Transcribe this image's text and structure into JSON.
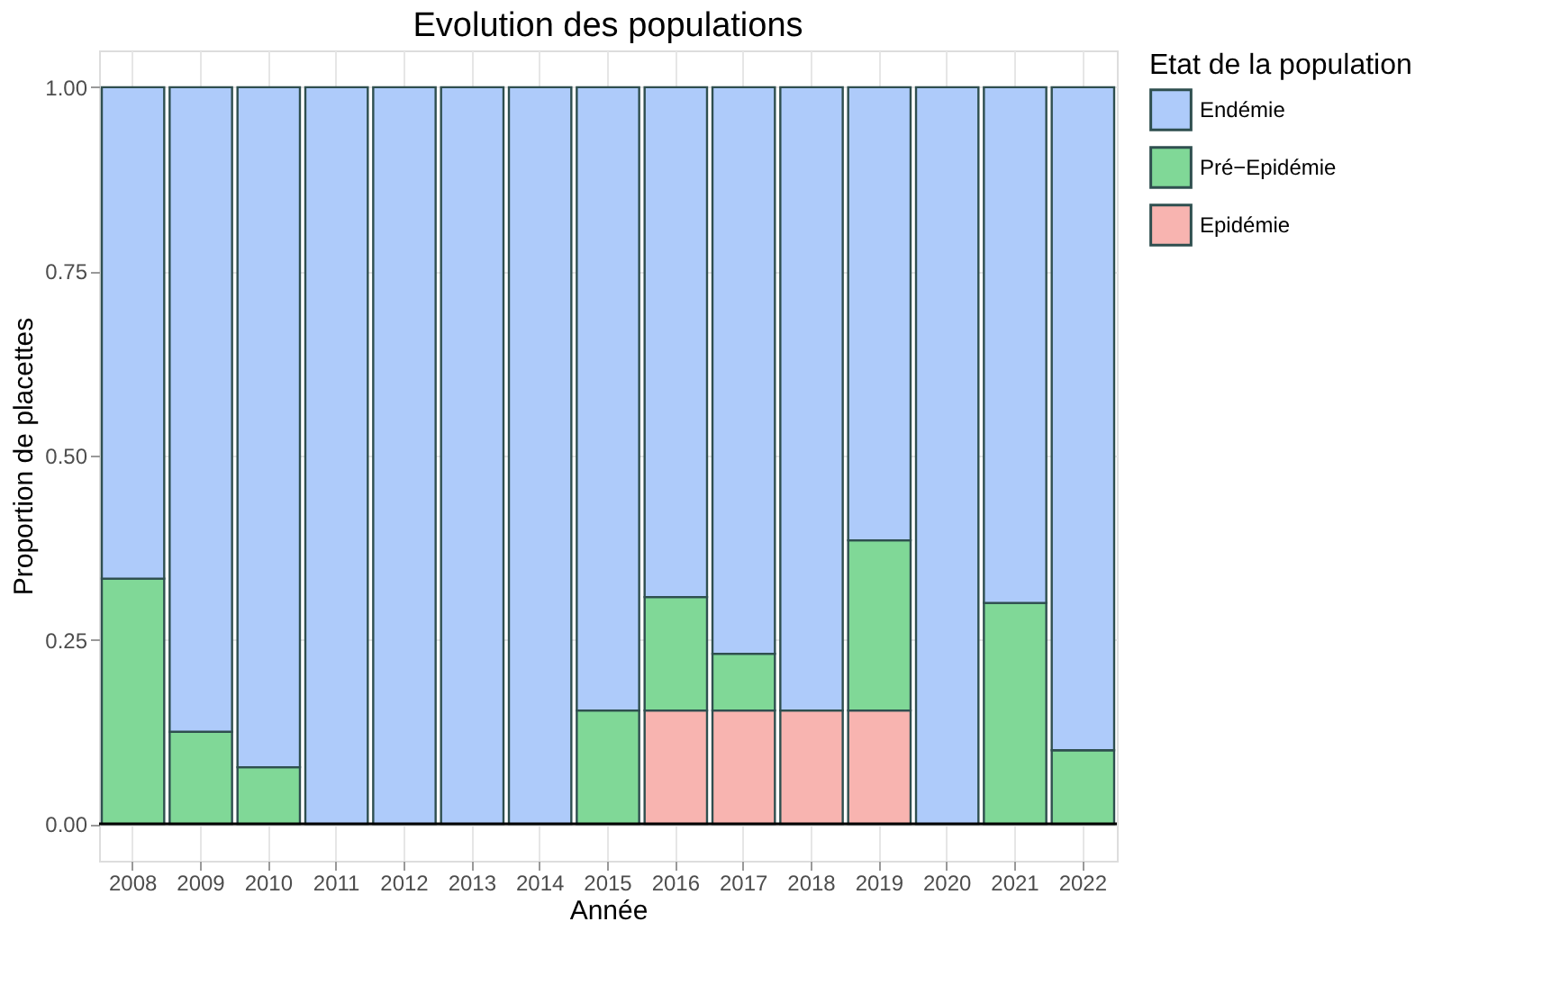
{
  "chart_data": {
    "type": "bar",
    "stacked": true,
    "title": "Evolution des populations",
    "xlabel": "Année",
    "ylabel": "Proportion de placettes",
    "legend_title": "Etat de la population",
    "legend": "right",
    "grid": true,
    "categories": [
      "2008",
      "2009",
      "2010",
      "2011",
      "2012",
      "2013",
      "2014",
      "2015",
      "2016",
      "2017",
      "2018",
      "2019",
      "2020",
      "2021",
      "2022"
    ],
    "series": [
      {
        "name": "Epidémie",
        "color": "#f8b4b0",
        "values": [
          null,
          null,
          null,
          null,
          null,
          null,
          null,
          null,
          0.154,
          0.154,
          0.154,
          0.154,
          null,
          null,
          null
        ]
      },
      {
        "name": "Pré−Epidémie",
        "color": "#80d897",
        "values": [
          0.333,
          0.125,
          0.077,
          null,
          null,
          null,
          null,
          0.154,
          0.154,
          0.077,
          null,
          0.231,
          null,
          0.3,
          0.1
        ]
      },
      {
        "name": "Endémie",
        "color": "#aecbfa",
        "values": [
          0.667,
          0.875,
          0.923,
          1,
          1,
          1,
          1,
          0.846,
          0.692,
          0.769,
          0.846,
          0.615,
          1,
          0.7,
          0.9
        ]
      }
    ],
    "ylim": [
      -0.05,
      1.05
    ],
    "yticks": [
      {
        "value": 0,
        "label": "0.00"
      },
      {
        "value": 0.25,
        "label": "0.25"
      },
      {
        "value": 0.5,
        "label": "0.50"
      },
      {
        "value": 0.75,
        "label": "0.75"
      },
      {
        "value": 1,
        "label": "1.00"
      }
    ]
  }
}
